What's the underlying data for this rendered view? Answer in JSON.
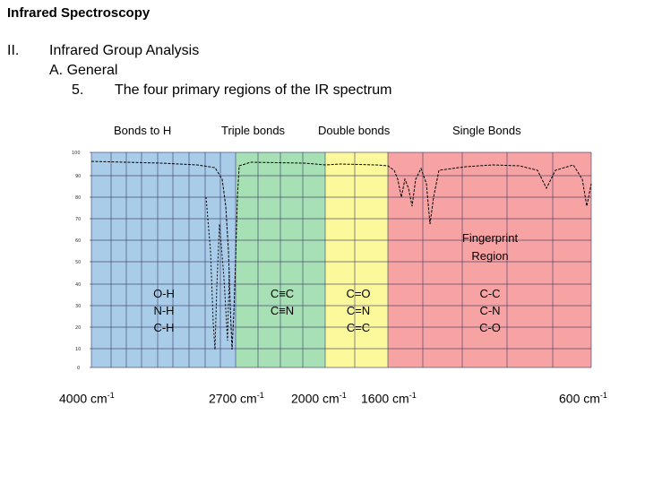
{
  "slide": {
    "title": "Infrared Spectroscopy",
    "outline": {
      "roman": "II.",
      "heading": "Infrared Group Analysis",
      "sub": "A.  General",
      "item_num": "5.",
      "item_text": "The four primary regions of the IR spectrum"
    }
  },
  "regions": {
    "bonds_to_h": "Bonds to H",
    "triple": "Triple bonds",
    "double": "Double bonds",
    "single": "Single Bonds"
  },
  "bands": {
    "h": [
      "O-H",
      "N-H",
      "C-H"
    ],
    "triple": [
      "C≡C",
      "C≡N"
    ],
    "double": [
      "C=O",
      "C=N",
      "C=C"
    ],
    "single": [
      "C-C",
      "C-N",
      "C-O"
    ],
    "fingerprint": [
      "Fingerprint",
      "Region"
    ]
  },
  "wavenumbers": {
    "w4000": "4000 cm",
    "w2700": "2700 cm",
    "w2000": "2000 cm",
    "w1600": "1600 cm",
    "w600": "600 cm",
    "sup": "-1"
  },
  "colors": {
    "bonds_to_h": "#a9cce9",
    "triple": "#a6e0b4",
    "double": "#fbf99c",
    "single": "#f8a3a3"
  }
}
